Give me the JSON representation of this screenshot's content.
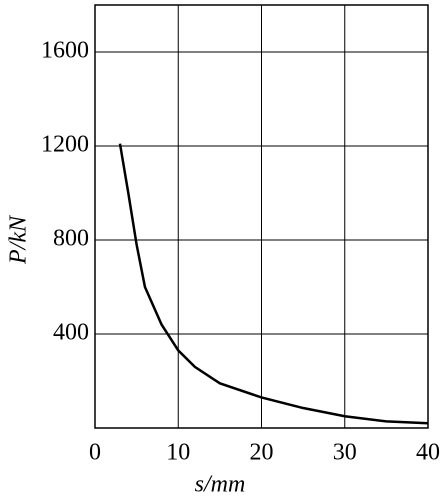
{
  "chart_data": {
    "type": "line",
    "xlabel": "s/mm",
    "ylabel": "P/kN",
    "series": [
      {
        "color": "#000000",
        "x": [
          3,
          4,
          5,
          6,
          8,
          10,
          12,
          15,
          20,
          25,
          30,
          35,
          40
        ],
        "values": [
          1210,
          1000,
          780,
          600,
          440,
          330,
          260,
          190,
          130,
          85,
          50,
          28,
          20
        ]
      }
    ],
    "xlim": [
      0,
      40
    ],
    "xticks": [
      0,
      10,
      20,
      30,
      40
    ],
    "ylim": [
      0,
      1800
    ],
    "yticks": [
      400,
      800,
      1200,
      1600
    ],
    "grid": true
  }
}
